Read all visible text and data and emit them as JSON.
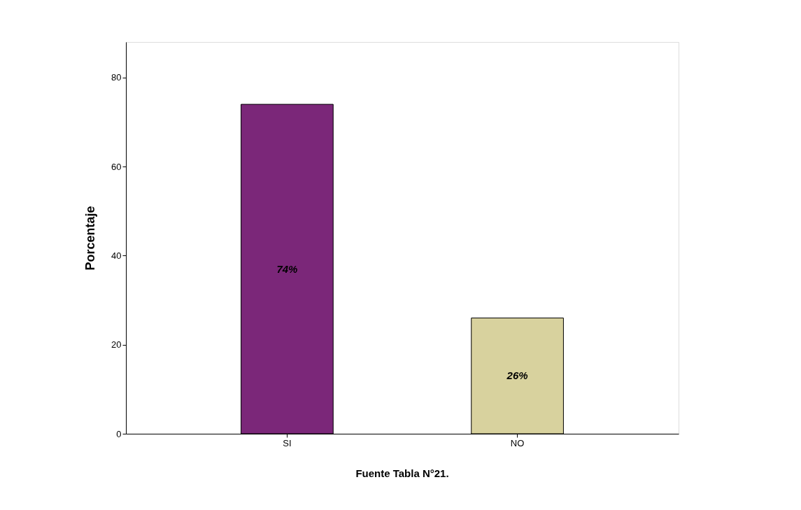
{
  "chart_data": {
    "type": "bar",
    "ylabel": "Porcentaje",
    "categories": [
      "SI",
      "NO"
    ],
    "values": [
      74,
      26
    ],
    "colors": [
      "#7b2779",
      "#d8d29e"
    ],
    "value_labels": [
      "74%",
      "26%"
    ],
    "ylim": [
      0,
      88
    ],
    "yticks": [
      0,
      20,
      40,
      60,
      80
    ],
    "grid": false,
    "annotations": [
      "Fuente Tabla N°21."
    ]
  }
}
